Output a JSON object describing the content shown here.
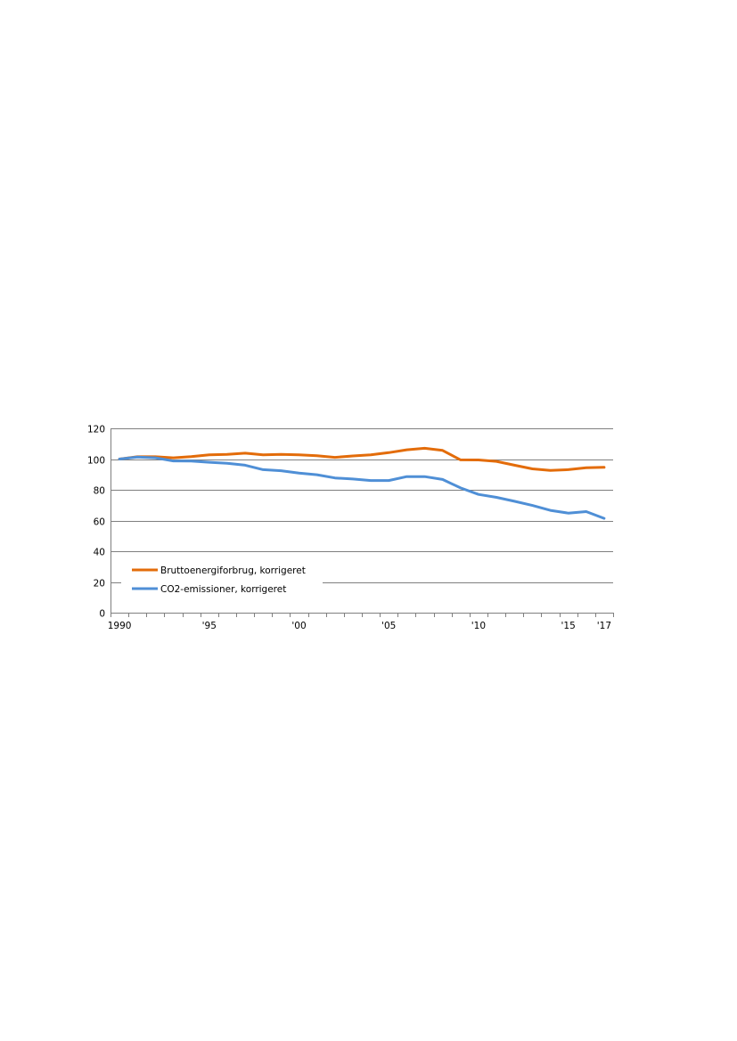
{
  "chart_data": {
    "type": "line",
    "title": "",
    "xlabel": "",
    "ylabel": "",
    "x": [
      1990,
      1991,
      1992,
      1993,
      1994,
      1995,
      1996,
      1997,
      1998,
      1999,
      2000,
      2001,
      2002,
      2003,
      2004,
      2005,
      2006,
      2007,
      2008,
      2009,
      2010,
      2011,
      2012,
      2013,
      2014,
      2015,
      2016,
      2017
    ],
    "xticks": [
      {
        "value": 1990,
        "label": "1990"
      },
      {
        "value": 1995,
        "label": "'95"
      },
      {
        "value": 2000,
        "label": "'00"
      },
      {
        "value": 2005,
        "label": "'05"
      },
      {
        "value": 2010,
        "label": "'10"
      },
      {
        "value": 2015,
        "label": "'15"
      },
      {
        "value": 2017,
        "label": "'17"
      }
    ],
    "yticks": [
      "0",
      "20",
      "40",
      "60",
      "80",
      "100",
      "120"
    ],
    "ylim": [
      0,
      120
    ],
    "grid": "horizontal",
    "legend": "bottom-left",
    "series": [
      {
        "name": "Bruttoenergiforbrug, korrigeret",
        "color": "#e36c0a",
        "values": [
          100,
          101.5,
          101.5,
          100.8,
          101.6,
          102.8,
          103.1,
          103.8,
          102.8,
          103.1,
          102.8,
          102.2,
          101.1,
          102,
          102.8,
          104.2,
          106,
          107,
          105.6,
          99.5,
          99.4,
          98.5,
          96,
          93.6,
          92.6,
          93.1,
          94.3,
          94.6
        ]
      },
      {
        "name": "CO2-emissioner, korrigeret",
        "color": "#4f8fd6",
        "values": [
          100,
          101.3,
          100.8,
          98.8,
          98.7,
          97.9,
          97.2,
          96,
          93.1,
          92.4,
          90.9,
          89.8,
          87.7,
          87,
          86,
          86,
          88.6,
          88.6,
          86.7,
          81.2,
          77,
          75.1,
          72.5,
          69.8,
          66.6,
          64.8,
          65.8,
          61.4
        ]
      }
    ]
  }
}
